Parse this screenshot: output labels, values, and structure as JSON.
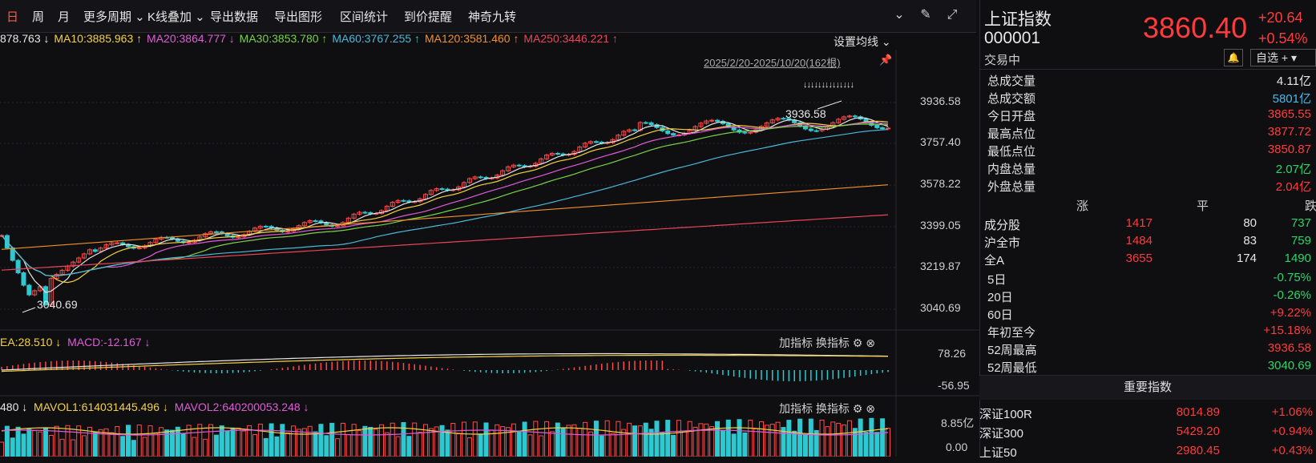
{
  "toolbar": {
    "items": [
      {
        "label": "日",
        "active": true
      },
      {
        "label": "周"
      },
      {
        "label": "月"
      },
      {
        "label": "更多周期 ⌄"
      },
      {
        "label": "K线叠加 ⌄"
      },
      {
        "label": "导出数据"
      },
      {
        "label": "导出图形"
      },
      {
        "label": "区间统计"
      },
      {
        "label": "到价提醒"
      },
      {
        "label": "神奇九转"
      }
    ],
    "icons": [
      "chevron-circle-icon",
      "brush-icon",
      "fullscreen-icon"
    ]
  },
  "ma_legend": {
    "ma5": "878.763 ↓",
    "ma10": "MA10:3885.963 ↑",
    "ma20": "MA20:3864.777 ↓",
    "ma30": "MA30:3853.780 ↑",
    "ma60": "MA60:3767.255 ↑",
    "ma120": "MA120:3581.460 ↑",
    "ma250": "MA250:3446.221 ↑",
    "setting": "设置均线 ⌄",
    "colors": {
      "ma5": "#e6e6e6",
      "ma10": "#f5d142",
      "ma20": "#e05bd8",
      "ma30": "#7ad14a",
      "ma60": "#4ab8d8",
      "ma120": "#f0902a",
      "ma250": "#e8455a"
    }
  },
  "date_range": "2025/2/20-2025/10/20(162根)",
  "price_axis": [
    "3936.58",
    "3757.40",
    "3578.22",
    "3399.05",
    "3219.87",
    "3040.69"
  ],
  "annotations": {
    "high": "3936.58",
    "low": "3040.69",
    "markers": "↓↓↓↓↓↓↓↓↓↓↓↓↓↓"
  },
  "macd": {
    "legend_dea": "EA:28.510 ↓",
    "legend_macd": "MACD:-12.167 ↓",
    "axis_top": "78.26",
    "axis_bottom": "-56.95",
    "add": "加指标",
    "switch": "换指标"
  },
  "volume": {
    "legend_vol": "480 ↓",
    "legend_mavol1": "MAVOL1:614031445.496 ↓",
    "legend_mavol2": "MAVOL2:640200053.248 ↓",
    "axis_top": "8.85亿",
    "axis_bottom": "0.00",
    "add": "加指标",
    "switch": "换指标"
  },
  "quote": {
    "name": "上证指数",
    "code": "000001",
    "price": "3860.40",
    "change": "+20.64",
    "pct": "+0.54%",
    "status": "交易中",
    "watchlist": "自选 + ▾",
    "stats": [
      {
        "k": "总成交量",
        "v": "4.11亿",
        "c": "white"
      },
      {
        "k": "总成交额",
        "v": "5801亿",
        "c": "cyan"
      },
      {
        "k": "今日开盘",
        "v": "3865.55",
        "c": "red"
      },
      {
        "k": "最高点位",
        "v": "3877.72",
        "c": "red"
      },
      {
        "k": "最低点位",
        "v": "3850.87",
        "c": "red"
      },
      {
        "k": "内盘总量",
        "v": "2.07亿",
        "c": "green"
      },
      {
        "k": "外盘总量",
        "v": "2.04亿",
        "c": "red"
      }
    ],
    "breadth_head": {
      "up": "涨",
      "flat": "平",
      "down": "跌"
    },
    "breadth": [
      {
        "k": "成分股",
        "up": "1417",
        "flat": "80",
        "down": "737"
      },
      {
        "k": "沪全市",
        "up": "1484",
        "flat": "83",
        "down": "759"
      },
      {
        "k": "全A",
        "up": "3655",
        "flat": "174",
        "down": "1490"
      }
    ],
    "perf": [
      {
        "k": "5日",
        "v": "-0.75%",
        "c": "green"
      },
      {
        "k": "20日",
        "v": "-0.26%",
        "c": "green"
      },
      {
        "k": "60日",
        "v": "+9.22%",
        "c": "red"
      },
      {
        "k": "年初至今",
        "v": "+15.18%",
        "c": "red"
      },
      {
        "k": "52周最高",
        "v": "3936.58",
        "c": "red"
      },
      {
        "k": "52周最低",
        "v": "3040.69",
        "c": "green"
      }
    ],
    "section_title": "重要指数",
    "indices": [
      {
        "name": "深证100R",
        "price": "8014.89",
        "pct": "+1.06%"
      },
      {
        "name": "深证300",
        "price": "5429.20",
        "pct": "+0.94%"
      },
      {
        "name": "上证50",
        "price": "2980.45",
        "pct": "+0.43%"
      }
    ]
  }
}
